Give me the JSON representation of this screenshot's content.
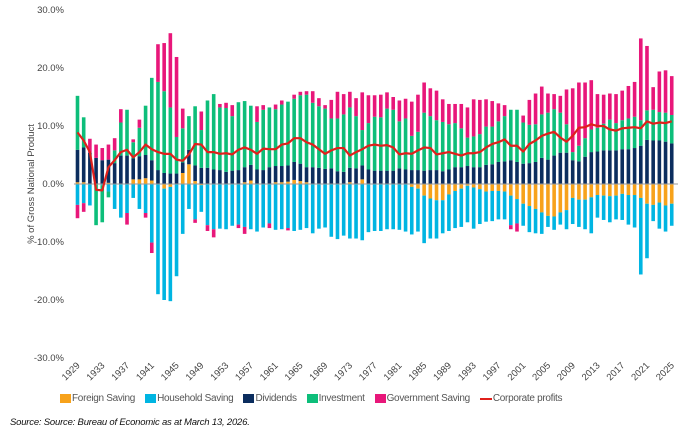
{
  "chart_data": {
    "type": "bar",
    "stacked": true,
    "ylabel": "% of Gross National Product",
    "ylim": [
      -30,
      30
    ],
    "yticks": [
      "30.0%",
      "20.0%",
      "10.0%",
      "0.0%",
      "-10.0%",
      "-20.0%",
      "-30.0%"
    ],
    "ytick_values": [
      30,
      20,
      10,
      0,
      -10,
      -20,
      -30
    ],
    "x_start": 1929,
    "x_end": 2025,
    "xtick_step": 4,
    "grid": false,
    "legend_position": "bottom",
    "series": [
      {
        "name": "Foreign Saving",
        "color": "#F7A21B",
        "values": [
          0.3,
          0.3,
          0,
          0,
          0,
          0.2,
          0,
          0,
          0,
          0.8,
          0.8,
          1.0,
          0.6,
          0,
          -0.8,
          -0.5,
          0,
          1.9,
          3.4,
          0.5,
          -0.2,
          0,
          0,
          0,
          0,
          0,
          0,
          0.3,
          0.6,
          0,
          0,
          0,
          0.3,
          0.3,
          0.4,
          0.7,
          0.5,
          0.3,
          0,
          0,
          0,
          0,
          0,
          0,
          0.3,
          0,
          0.8,
          0,
          0,
          0,
          0,
          0,
          0,
          0,
          -0.5,
          -0.8,
          -2.0,
          -2.5,
          -2.8,
          -2.8,
          -1.8,
          -1.2,
          -0.8,
          -0.3,
          -0.6,
          -0.9,
          -1.3,
          -1.2,
          -1.2,
          -1.3,
          -2.0,
          -2.6,
          -3.4,
          -3.8,
          -4.3,
          -4.9,
          -5.5,
          -5.6,
          -4.9,
          -4.5,
          -2.4,
          -2.7,
          -2.7,
          -2.3,
          -1.9,
          -2.0,
          -2.1,
          -2.0,
          -1.7,
          -1.9,
          -1.9,
          -2.4,
          -3.4,
          -3.6,
          -3.2,
          -3.7,
          -3.4
        ]
      },
      {
        "name": "Household Saving",
        "color": "#00B5E2",
        "values": [
          -3.6,
          -3.3,
          -3.7,
          0,
          -0.2,
          -1.3,
          -4.3,
          -5.8,
          -5.0,
          -2.4,
          -4.3,
          -5.0,
          -10.1,
          -19.0,
          -19.2,
          -19.7,
          -15.9,
          -8.6,
          -4.3,
          -6.1,
          -4.6,
          -7.1,
          -7.8,
          -7.7,
          -7.8,
          -7.2,
          -7.0,
          -7.4,
          -7.8,
          -8.2,
          -7.5,
          -6.8,
          -7.9,
          -7.8,
          -7.6,
          -8.1,
          -7.9,
          -7.6,
          -8.5,
          -7.7,
          -7.5,
          -9.1,
          -9.5,
          -8.9,
          -9.4,
          -9.4,
          -9.7,
          -8.3,
          -8.1,
          -8.1,
          -7.8,
          -7.8,
          -7.9,
          -8.2,
          -8.2,
          -7.4,
          -8.2,
          -6.9,
          -6.6,
          -5.7,
          -6.3,
          -6.4,
          -6.6,
          -6.3,
          -7.1,
          -6.0,
          -5.2,
          -5.2,
          -4.9,
          -4.8,
          -5.1,
          -4.2,
          -3.8,
          -4.5,
          -4.2,
          -3.7,
          -1.9,
          -2.3,
          -2.1,
          -3.3,
          -4.5,
          -4.7,
          -5.1,
          -6.2,
          -3.9,
          -4.2,
          -4.5,
          -4.1,
          -4.5,
          -5.1,
          -5.6,
          -13.2,
          -9.4,
          -2.8,
          -4.5,
          -4.5,
          -3.8
        ]
      },
      {
        "name": "Dividends",
        "color": "#0B2D5E",
        "values": [
          5.6,
          6.0,
          5.4,
          4.5,
          4.1,
          4.0,
          3.6,
          4.9,
          4.9,
          3.6,
          4.0,
          4.0,
          3.5,
          2.4,
          1.9,
          1.8,
          1.8,
          1.8,
          2.5,
          2.7,
          2.8,
          2.8,
          2.5,
          2.4,
          2.1,
          2.3,
          2.4,
          2.6,
          2.7,
          2.5,
          2.4,
          2.9,
          2.8,
          2.8,
          2.8,
          3.1,
          3.0,
          2.6,
          2.9,
          2.8,
          2.6,
          2.7,
          2.2,
          2.1,
          2.5,
          2.7,
          2.4,
          2.5,
          2.3,
          2.3,
          2.3,
          2.3,
          2.7,
          2.5,
          2.4,
          2.4,
          2.3,
          2.4,
          2.4,
          2.2,
          2.5,
          2.9,
          2.9,
          3.1,
          2.9,
          2.9,
          3.3,
          3.4,
          3.8,
          3.9,
          4.1,
          3.8,
          3.5,
          3.6,
          3.8,
          4.5,
          4.2,
          4.9,
          5.4,
          5.4,
          4.1,
          3.9,
          4.7,
          5.5,
          5.6,
          5.8,
          5.8,
          5.8,
          6.0,
          6.0,
          6.2,
          6.6,
          7.6,
          7.5,
          7.5,
          7.3,
          7.0
        ]
      },
      {
        "name": "Investment",
        "color": "#0DBE7A",
        "values": [
          9.3,
          5.2,
          0,
          -7.1,
          -6.4,
          -1.0,
          2.2,
          5.7,
          7.9,
          2.8,
          4.9,
          8.5,
          14.2,
          15.2,
          14.1,
          11.4,
          6.3,
          5.9,
          5.8,
          10.2,
          6.5,
          11.6,
          13.0,
          10.8,
          11.0,
          9.4,
          11.7,
          11.4,
          10.2,
          8.2,
          10.4,
          10.3,
          9.8,
          10.6,
          11.0,
          10.9,
          11.8,
          12.5,
          11.1,
          10.6,
          10.4,
          8.6,
          9.1,
          9.9,
          10.4,
          9.0,
          6.1,
          8.0,
          9.3,
          9.2,
          10.7,
          10.5,
          8.1,
          8.8,
          5.9,
          6.6,
          10.0,
          9.3,
          8.6,
          8.5,
          7.8,
          7.6,
          6.7,
          4.9,
          5.3,
          5.7,
          6.6,
          6.5,
          7.0,
          7.8,
          8.7,
          9.0,
          7.1,
          6.6,
          6.5,
          7.5,
          8.1,
          8.0,
          6.9,
          4.9,
          1.4,
          2.7,
          3.2,
          3.9,
          4.1,
          4.6,
          5.3,
          4.7,
          5.0,
          5.3,
          5.4,
          4.4,
          5.1,
          5.3,
          4.9,
          5.0,
          4.9
        ]
      },
      {
        "name": "Government Saving",
        "color": "#E8177A",
        "values": [
          -2.3,
          -1.5,
          2.4,
          2.3,
          2.1,
          2.6,
          2.1,
          2.3,
          -2.0,
          0.5,
          1.4,
          -0.8,
          -1.8,
          6.5,
          8.3,
          12.8,
          13.8,
          3.4,
          0,
          -0.6,
          3.2,
          -1.0,
          -1.4,
          0.6,
          0.9,
          1.9,
          -0.6,
          -1.2,
          0,
          2.7,
          0.8,
          -0.8,
          0.8,
          0.7,
          -0.4,
          0.7,
          0.6,
          0.6,
          2.0,
          1.4,
          0.6,
          3.2,
          4.6,
          3.5,
          2.7,
          3.1,
          6.5,
          4.8,
          3.7,
          3.9,
          2.8,
          2.2,
          3.6,
          3.4,
          5.9,
          6.4,
          5.2,
          4.8,
          5.1,
          3.9,
          3.5,
          3.3,
          4.2,
          5.2,
          6.4,
          5.9,
          4.7,
          4.4,
          3.1,
          1.9,
          -0.7,
          -1.4,
          1.2,
          4.3,
          5.3,
          4.8,
          3.3,
          2.6,
          2.9,
          6.0,
          11.0,
          10.9,
          9.6,
          8.5,
          5.8,
          5.0,
          4.5,
          5.0,
          5.1,
          5.6,
          6.0,
          14.1,
          11.1,
          3.9,
          7.0,
          7.3,
          6.7
        ]
      },
      {
        "name": "Corporate profits",
        "color": "#E0201B",
        "type": "line",
        "values": [
          8.9,
          7.5,
          5.5,
          -1.0,
          -1.1,
          2.9,
          4.1,
          5.5,
          5.9,
          4.6,
          5.5,
          6.8,
          6.0,
          5.5,
          5.2,
          5.2,
          4.2,
          4.0,
          5.1,
          6.9,
          6.8,
          5.5,
          5.5,
          5.2,
          5.3,
          5.1,
          5.9,
          6.3,
          5.9,
          5.2,
          6.1,
          6.0,
          6.0,
          6.8,
          7.0,
          7.9,
          7.9,
          7.2,
          6.8,
          6.0,
          5.2,
          5.8,
          6.2,
          6.2,
          4.9,
          5.5,
          6.0,
          6.6,
          6.8,
          6.6,
          6.7,
          6.3,
          5.1,
          5.3,
          5.2,
          5.8,
          6.3,
          6.2,
          5.1,
          5.3,
          5.5,
          5.2,
          4.9,
          5.3,
          5.3,
          5.5,
          6.3,
          6.9,
          7.2,
          7.7,
          6.6,
          6.6,
          5.6,
          6.9,
          7.5,
          8.3,
          8.7,
          9.0,
          8.0,
          7.3,
          8.3,
          9.7,
          9.8,
          10.3,
          10.0,
          10.0,
          9.4,
          9.2,
          9.6,
          9.7,
          9.8,
          9.6,
          10.8,
          10.4,
          10.6,
          10.5,
          10.8
        ]
      }
    ]
  },
  "source": "Source: Source: Bureau of Economic  as at March 13, 2026."
}
